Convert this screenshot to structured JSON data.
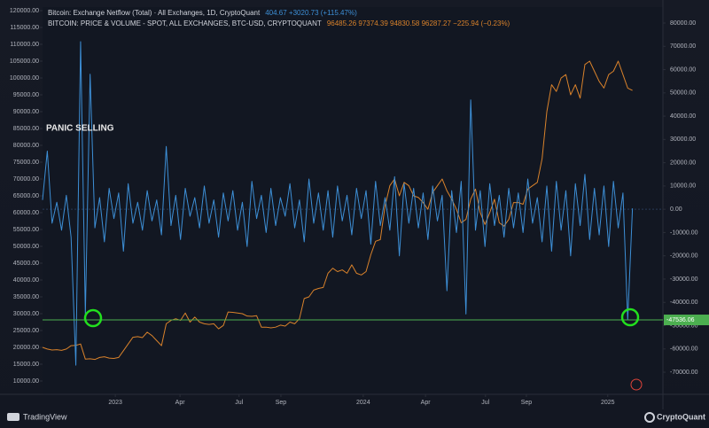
{
  "chart_data": {
    "type": "line",
    "annotation": "PANIC SELLING",
    "x": [
      0,
      1,
      2,
      3,
      4,
      5,
      6,
      7,
      8,
      9,
      10,
      11,
      12,
      13,
      14,
      15,
      16,
      17,
      18,
      19,
      20,
      21,
      22,
      23,
      24,
      25,
      26,
      27,
      28,
      29,
      30,
      31,
      32,
      33,
      34,
      35,
      36,
      37,
      38,
      39,
      40,
      41,
      42,
      43,
      44,
      45,
      46,
      47,
      48,
      49,
      50,
      51,
      52,
      53,
      54,
      55,
      56,
      57,
      58,
      59,
      60,
      61,
      62,
      63,
      64,
      65,
      66,
      67,
      68,
      69,
      70,
      71,
      72,
      73,
      74,
      75,
      76,
      77,
      78,
      79,
      80,
      81,
      82,
      83,
      84,
      85,
      86,
      87,
      88,
      89,
      90,
      91,
      92,
      93,
      94,
      95,
      96,
      97,
      98,
      99,
      100,
      101,
      102,
      103,
      104,
      105,
      106,
      107,
      108,
      109,
      110,
      111,
      112,
      113,
      114,
      115,
      116,
      117,
      118,
      119,
      120,
      121,
      122,
      123,
      124
    ],
    "xlim": [
      0,
      130.4
    ],
    "xticks": [
      {
        "value": 15.3,
        "label": "2023"
      },
      {
        "value": 28.9,
        "label": "Apr"
      },
      {
        "value": 41.3,
        "label": "Jul"
      },
      {
        "value": 50.1,
        "label": "Sep"
      },
      {
        "value": 67.4,
        "label": "2024"
      },
      {
        "value": 80.5,
        "label": "Apr"
      },
      {
        "value": 93.1,
        "label": "Jul"
      },
      {
        "value": 101.7,
        "label": "Sep"
      },
      {
        "value": 118.8,
        "label": "2025"
      }
    ],
    "ylim": [
      6050,
      121050
    ],
    "yticks": [
      {
        "value": 10000,
        "label": "10000.00"
      },
      {
        "value": 15000,
        "label": "15000.00"
      },
      {
        "value": 20000,
        "label": "20000.00"
      },
      {
        "value": 25000,
        "label": "25000.00"
      },
      {
        "value": 30000,
        "label": "30000.00"
      },
      {
        "value": 35000,
        "label": "35000.00"
      },
      {
        "value": 40000,
        "label": "40000.00"
      },
      {
        "value": 45000,
        "label": "45000.00"
      },
      {
        "value": 50000,
        "label": "50000.00"
      },
      {
        "value": 55000,
        "label": "55000.00"
      },
      {
        "value": 60000,
        "label": "60000.00"
      },
      {
        "value": 65000,
        "label": "65000.00"
      },
      {
        "value": 70000,
        "label": "70000.00"
      },
      {
        "value": 75000,
        "label": "75000.00"
      },
      {
        "value": 80000,
        "label": "80000.00"
      },
      {
        "value": 85000,
        "label": "85000.00"
      },
      {
        "value": 90000,
        "label": "90000.00"
      },
      {
        "value": 95000,
        "label": "95000.00"
      },
      {
        "value": 100000,
        "label": "100000.00"
      },
      {
        "value": 105000,
        "label": "105000.00"
      },
      {
        "value": 110000,
        "label": "110000.00"
      },
      {
        "value": 115000,
        "label": "115000.00"
      },
      {
        "value": 120000,
        "label": "120000.00"
      }
    ],
    "y2lim": [
      -79500,
      86850
    ],
    "y2ticks": [
      {
        "value": -70000,
        "label": "-70000.00"
      },
      {
        "value": -60000,
        "label": "-60000.00"
      },
      {
        "value": -50000,
        "label": "-50000.00"
      },
      {
        "value": -40000,
        "label": "-40000.00"
      },
      {
        "value": -30000,
        "label": "-30000.00"
      },
      {
        "value": -20000,
        "label": "-20000.00"
      },
      {
        "value": -10000,
        "label": "-10000.00"
      },
      {
        "value": 0,
        "label": "0.00"
      },
      {
        "value": 10000,
        "label": "10000.00"
      },
      {
        "value": 20000,
        "label": "20000.00"
      },
      {
        "value": 30000,
        "label": "30000.00"
      },
      {
        "value": 40000,
        "label": "40000.00"
      },
      {
        "value": 50000,
        "label": "50000.00"
      },
      {
        "value": 60000,
        "label": "60000.00"
      },
      {
        "value": 70000,
        "label": "70000.00"
      },
      {
        "value": 80000,
        "label": "80000.00"
      }
    ],
    "hline": {
      "value": -47536.06,
      "label": "-47536.06",
      "color": "#4caf50",
      "axis": "y2"
    },
    "series": [
      {
        "name": "Bitcoin: Exchange Netflow (Total) · All Exchanges, 1D, CryptoQuant",
        "legend_values": "404.67 +3020.73 (+115.47%)",
        "color": "#3d8fd6",
        "axis": "y2",
        "values": [
          4000,
          25000,
          -6000,
          3000,
          -9000,
          6000,
          -12000,
          -67000,
          72000,
          -45000,
          58000,
          -8000,
          5000,
          -14000,
          9000,
          -4000,
          7000,
          -18000,
          11000,
          -6000,
          3000,
          -9000,
          8000,
          -5000,
          4000,
          -11000,
          27000,
          -7000,
          6000,
          -13000,
          9000,
          -3000,
          5000,
          -8000,
          10000,
          -6000,
          4000,
          -12000,
          7000,
          -5000,
          8000,
          -9000,
          3000,
          -16000,
          12000,
          -4000,
          6000,
          -10000,
          9000,
          -7000,
          5000,
          -3000,
          11000,
          -8000,
          4000,
          -14000,
          13000,
          -6000,
          7000,
          -9000,
          8000,
          -12000,
          10000,
          -5000,
          6000,
          -11000,
          9000,
          -4000,
          8000,
          -15000,
          12000,
          -7000,
          5000,
          -9000,
          14000,
          -20000,
          11000,
          -6000,
          9000,
          -8000,
          7000,
          -13000,
          10000,
          -5000,
          6000,
          -35000,
          8000,
          -10000,
          12000,
          -45000,
          47000,
          -9000,
          8000,
          -16000,
          11000,
          -7000,
          6000,
          -12000,
          9000,
          -8000,
          7000,
          -10000,
          13000,
          -6000,
          5000,
          -14000,
          10000,
          -18000,
          12000,
          -9000,
          8000,
          -20000,
          11000,
          -7000,
          15000,
          -13000,
          9000,
          -11000,
          10000,
          -16000,
          12000,
          -8000,
          7000,
          -47536,
          404.67
        ]
      },
      {
        "name": "BITCOIN: PRICE & VOLUME - SPOT, ALL EXCHANGES, BTC-USD, CRYPTOQUANT",
        "legend_values": "96485.26 97374.39 94830.58 96287.27 −225.94 (−0.23%)",
        "color": "#d9822b",
        "axis": "y",
        "values": [
          20000,
          19500,
          19200,
          19300,
          19100,
          19500,
          20500,
          20600,
          21000,
          16500,
          16600,
          16400,
          17000,
          17200,
          16800,
          16700,
          17000,
          19000,
          21000,
          23000,
          23200,
          22900,
          24500,
          23500,
          22000,
          20500,
          27000,
          28000,
          28500,
          28000,
          30200,
          27500,
          29000,
          27500,
          27000,
          26800,
          27000,
          25500,
          26500,
          30500,
          30400,
          30200,
          30000,
          29300,
          29200,
          29400,
          26000,
          26000,
          25800,
          26000,
          26600,
          26300,
          27500,
          27000,
          28500,
          34500,
          35000,
          37000,
          37500,
          37800,
          42000,
          43500,
          42500,
          43000,
          42000,
          44500,
          42000,
          41500,
          42500,
          47500,
          51500,
          52000,
          62000,
          68000,
          70000,
          65000,
          69000,
          68000,
          65000,
          64500,
          63000,
          61000,
          66000,
          68000,
          70000,
          66500,
          64000,
          61000,
          57000,
          58000,
          64000,
          67000,
          60000,
          56500,
          60000,
          64000,
          57000,
          56000,
          58000,
          63000,
          63000,
          62500,
          67000,
          68000,
          69000,
          76000,
          90000,
          98000,
          96000,
          100000,
          101000,
          95000,
          98000,
          94000,
          104000,
          105000,
          102000,
          99000,
          97000,
          101000,
          102000,
          105000,
          101000,
          97000,
          96287.27
        ]
      }
    ]
  },
  "footer": {
    "left": "TradingView",
    "right": "CryptoQuant"
  }
}
